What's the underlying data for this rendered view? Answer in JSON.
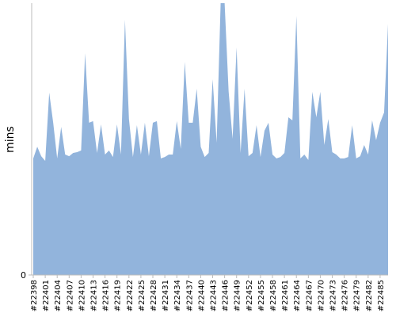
{
  "chart_data": {
    "type": "area",
    "y_label": "mins",
    "color": "#92b4dc",
    "ylim": [
      0,
      100
    ],
    "yticks": [
      0
    ],
    "categories": [
      "#22398",
      null,
      null,
      "#22401",
      null,
      null,
      "#22404",
      null,
      null,
      "#22407",
      null,
      null,
      "#22410",
      null,
      null,
      "#22413",
      null,
      null,
      "#22416",
      null,
      null,
      "#22419",
      null,
      null,
      "#22422",
      null,
      null,
      "#22425",
      null,
      null,
      "#22428",
      null,
      null,
      "#22431",
      null,
      null,
      "#22434",
      null,
      null,
      "#22437",
      null,
      null,
      "#22440",
      null,
      null,
      "#22443",
      null,
      null,
      "#22446",
      null,
      null,
      "#22449",
      null,
      null,
      "#22452",
      null,
      null,
      "#22455",
      null,
      null,
      "#22458",
      null,
      null,
      "#22461",
      null,
      null,
      "#22464",
      null,
      null,
      "#22467",
      null,
      null,
      "#22470",
      null,
      null,
      "#22473",
      null,
      null,
      "#22476",
      null,
      null,
      "#22479",
      null,
      null,
      "#22482",
      null,
      null,
      "#22485",
      null,
      null
    ],
    "values": [
      42.9,
      47.2,
      43.7,
      42.0,
      67.1,
      56.0,
      42.9,
      54.5,
      44.3,
      43.7,
      44.9,
      45.2,
      45.8,
      81.6,
      56.0,
      56.6,
      44.9,
      55.4,
      44.3,
      45.8,
      43.4,
      55.4,
      44.3,
      93.9,
      57.4,
      43.4,
      55.1,
      44.3,
      56.0,
      43.7,
      56.0,
      56.6,
      42.9,
      43.4,
      44.3,
      44.3,
      56.6,
      46.4,
      78.4,
      56.0,
      56.0,
      68.5,
      47.2,
      43.4,
      44.9,
      72.0,
      48.7,
      100,
      100,
      67.6,
      50.1,
      83.7,
      44.9,
      68.5,
      43.7,
      44.9,
      55.1,
      43.4,
      53.1,
      56.0,
      44.3,
      42.9,
      43.4,
      44.9,
      58.0,
      56.9,
      95.3,
      42.9,
      44.3,
      42.3,
      67.4,
      58.0,
      67.4,
      47.8,
      57.4,
      45.2,
      44.3,
      42.9,
      42.9,
      43.4,
      55.1,
      42.9,
      43.7,
      47.8,
      44.3,
      56.9,
      49.6,
      56.0,
      59.8,
      92.4
    ]
  }
}
